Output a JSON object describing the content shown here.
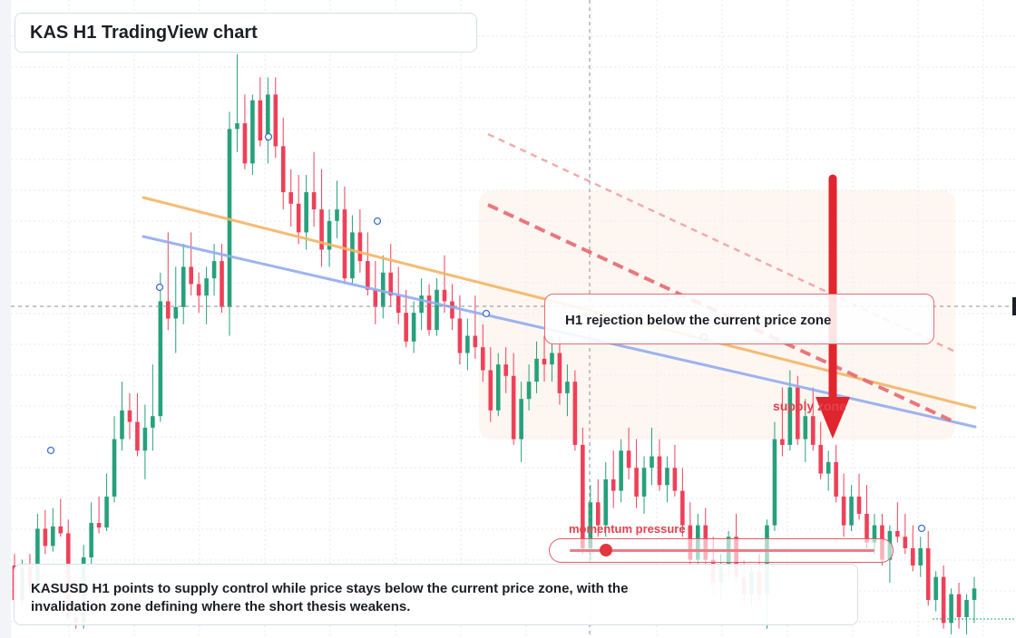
{
  "title": "KAS H1 TradingView chart",
  "rejection_note": "H1 rejection below the current price zone",
  "zone_label": "supply zone",
  "momentum": {
    "label": "momentum pressure",
    "level": 0.12
  },
  "summary": "KASUSD H1 points to supply control while price stays below the current price zone, with the invalidation zone defining where the short thesis weakens.",
  "colors": {
    "bull": "#26a17b",
    "bear": "#ef4058",
    "orange_trend": "#f5b565",
    "blue_trend": "#93acef",
    "red_channel": "#e76a71",
    "arrow": "#e0252e",
    "grid": "#e5e9ef",
    "crosshair": "#8a8f98"
  },
  "chart_data": {
    "type": "candlestick",
    "symbol": "KASUSD",
    "timeframe": "H1",
    "axis_labels": "none",
    "grid": true,
    "candles": [
      {
        "o": 0.6,
        "h": 0.7,
        "l": 0.25,
        "c": 0.3
      },
      {
        "o": 0.3,
        "h": 0.65,
        "l": 0.25,
        "c": 0.59
      },
      {
        "o": 0.59,
        "h": 0.7,
        "l": 0.35,
        "c": 0.42
      },
      {
        "o": 0.42,
        "h": 1.05,
        "l": 0.38,
        "c": 0.92
      },
      {
        "o": 0.92,
        "h": 1.08,
        "l": 0.7,
        "c": 0.77
      },
      {
        "o": 0.77,
        "h": 1.1,
        "l": 0.72,
        "c": 0.94
      },
      {
        "o": 0.94,
        "h": 1.18,
        "l": 0.85,
        "c": 0.88
      },
      {
        "o": 0.88,
        "h": 1.0,
        "l": 0.12,
        "c": 0.15
      },
      {
        "o": 0.15,
        "h": 0.3,
        "l": 0.05,
        "c": 0.1
      },
      {
        "o": 0.1,
        "h": 0.78,
        "l": 0.05,
        "c": 0.67
      },
      {
        "o": 0.67,
        "h": 1.15,
        "l": 0.6,
        "c": 0.97
      },
      {
        "o": 0.97,
        "h": 1.2,
        "l": 0.88,
        "c": 0.93
      },
      {
        "o": 0.93,
        "h": 1.4,
        "l": 0.9,
        "c": 1.2
      },
      {
        "o": 1.2,
        "h": 1.9,
        "l": 1.15,
        "c": 1.7
      },
      {
        "o": 1.7,
        "h": 2.2,
        "l": 1.6,
        "c": 1.95
      },
      {
        "o": 1.95,
        "h": 2.1,
        "l": 1.7,
        "c": 1.85
      },
      {
        "o": 1.85,
        "h": 2.1,
        "l": 1.55,
        "c": 1.6
      },
      {
        "o": 1.6,
        "h": 2.0,
        "l": 1.35,
        "c": 1.8
      },
      {
        "o": 1.8,
        "h": 2.35,
        "l": 1.6,
        "c": 1.9
      },
      {
        "o": 1.9,
        "h": 3.15,
        "l": 1.85,
        "c": 2.9
      },
      {
        "o": 2.9,
        "h": 3.5,
        "l": 2.65,
        "c": 2.75
      },
      {
        "o": 2.75,
        "h": 3.2,
        "l": 2.45,
        "c": 2.85
      },
      {
        "o": 2.85,
        "h": 3.4,
        "l": 2.7,
        "c": 3.2
      },
      {
        "o": 3.2,
        "h": 3.5,
        "l": 2.95,
        "c": 3.05
      },
      {
        "o": 3.05,
        "h": 3.15,
        "l": 2.8,
        "c": 2.95
      },
      {
        "o": 2.95,
        "h": 3.2,
        "l": 2.7,
        "c": 3.1
      },
      {
        "o": 3.1,
        "h": 3.4,
        "l": 2.95,
        "c": 3.25
      },
      {
        "o": 3.25,
        "h": 3.4,
        "l": 2.8,
        "c": 2.85
      },
      {
        "o": 2.85,
        "h": 4.55,
        "l": 2.6,
        "c": 4.4
      },
      {
        "o": 4.4,
        "h": 5.05,
        "l": 4.2,
        "c": 4.45
      },
      {
        "o": 4.45,
        "h": 4.7,
        "l": 4.05,
        "c": 4.1
      },
      {
        "o": 4.1,
        "h": 4.7,
        "l": 4.0,
        "c": 4.65
      },
      {
        "o": 4.65,
        "h": 4.85,
        "l": 4.25,
        "c": 4.3
      },
      {
        "o": 4.3,
        "h": 4.85,
        "l": 4.1,
        "c": 4.7
      },
      {
        "o": 4.7,
        "h": 4.85,
        "l": 4.15,
        "c": 4.25
      },
      {
        "o": 4.25,
        "h": 4.5,
        "l": 3.7,
        "c": 3.85
      },
      {
        "o": 3.85,
        "h": 4.05,
        "l": 3.55,
        "c": 3.75
      },
      {
        "o": 3.75,
        "h": 4.0,
        "l": 3.4,
        "c": 3.5
      },
      {
        "o": 3.5,
        "h": 4.0,
        "l": 3.35,
        "c": 3.85
      },
      {
        "o": 3.85,
        "h": 4.2,
        "l": 3.55,
        "c": 3.7
      },
      {
        "o": 3.7,
        "h": 4.05,
        "l": 3.2,
        "c": 3.35
      },
      {
        "o": 3.35,
        "h": 3.7,
        "l": 3.2,
        "c": 3.6
      },
      {
        "o": 3.6,
        "h": 3.95,
        "l": 3.45,
        "c": 3.7
      },
      {
        "o": 3.7,
        "h": 3.9,
        "l": 3.05,
        "c": 3.1
      },
      {
        "o": 3.1,
        "h": 3.65,
        "l": 3.05,
        "c": 3.5
      },
      {
        "o": 3.5,
        "h": 3.7,
        "l": 3.15,
        "c": 3.25
      },
      {
        "o": 3.25,
        "h": 3.5,
        "l": 2.95,
        "c": 3.0
      },
      {
        "o": 3.0,
        "h": 3.25,
        "l": 2.7,
        "c": 2.85
      },
      {
        "o": 2.85,
        "h": 3.3,
        "l": 2.75,
        "c": 3.15
      },
      {
        "o": 3.15,
        "h": 3.4,
        "l": 2.85,
        "c": 2.95
      },
      {
        "o": 2.95,
        "h": 3.2,
        "l": 2.7,
        "c": 2.8
      },
      {
        "o": 2.8,
        "h": 3.0,
        "l": 2.5,
        "c": 2.55
      },
      {
        "o": 2.55,
        "h": 2.9,
        "l": 2.45,
        "c": 2.8
      },
      {
        "o": 2.8,
        "h": 3.1,
        "l": 2.65,
        "c": 2.95
      },
      {
        "o": 2.95,
        "h": 3.05,
        "l": 2.6,
        "c": 2.65
      },
      {
        "o": 2.65,
        "h": 3.1,
        "l": 2.6,
        "c": 3.0
      },
      {
        "o": 3.0,
        "h": 3.3,
        "l": 2.8,
        "c": 2.9
      },
      {
        "o": 2.9,
        "h": 3.05,
        "l": 2.65,
        "c": 2.75
      },
      {
        "o": 2.75,
        "h": 2.95,
        "l": 2.35,
        "c": 2.45
      },
      {
        "o": 2.45,
        "h": 2.75,
        "l": 2.3,
        "c": 2.6
      },
      {
        "o": 2.6,
        "h": 2.95,
        "l": 2.4,
        "c": 2.5
      },
      {
        "o": 2.5,
        "h": 2.7,
        "l": 2.2,
        "c": 2.3
      },
      {
        "o": 2.3,
        "h": 2.5,
        "l": 1.85,
        "c": 1.95
      },
      {
        "o": 1.95,
        "h": 2.45,
        "l": 1.9,
        "c": 2.35
      },
      {
        "o": 2.35,
        "h": 2.5,
        "l": 2.1,
        "c": 2.25
      },
      {
        "o": 2.25,
        "h": 2.45,
        "l": 1.65,
        "c": 1.7
      },
      {
        "o": 1.7,
        "h": 2.2,
        "l": 1.5,
        "c": 2.05
      },
      {
        "o": 2.05,
        "h": 2.35,
        "l": 1.95,
        "c": 2.2
      },
      {
        "o": 2.2,
        "h": 2.55,
        "l": 2.1,
        "c": 2.4
      },
      {
        "o": 2.4,
        "h": 2.6,
        "l": 2.2,
        "c": 2.35
      },
      {
        "o": 2.35,
        "h": 2.6,
        "l": 2.2,
        "c": 2.45
      },
      {
        "o": 2.45,
        "h": 2.6,
        "l": 2.0,
        "c": 2.1
      },
      {
        "o": 2.1,
        "h": 2.35,
        "l": 1.9,
        "c": 2.2
      },
      {
        "o": 2.2,
        "h": 2.3,
        "l": 1.6,
        "c": 1.65
      },
      {
        "o": 1.65,
        "h": 1.8,
        "l": 0.7,
        "c": 0.75
      },
      {
        "o": 0.75,
        "h": 1.3,
        "l": 0.65,
        "c": 1.15
      },
      {
        "o": 1.15,
        "h": 1.35,
        "l": 0.85,
        "c": 0.95
      },
      {
        "o": 0.95,
        "h": 1.5,
        "l": 0.85,
        "c": 1.35
      },
      {
        "o": 1.35,
        "h": 1.6,
        "l": 1.1,
        "c": 1.25
      },
      {
        "o": 1.25,
        "h": 1.7,
        "l": 1.15,
        "c": 1.6
      },
      {
        "o": 1.6,
        "h": 1.8,
        "l": 1.35,
        "c": 1.45
      },
      {
        "o": 1.45,
        "h": 1.7,
        "l": 1.1,
        "c": 1.2
      },
      {
        "o": 1.2,
        "h": 1.55,
        "l": 1.05,
        "c": 1.45
      },
      {
        "o": 1.45,
        "h": 1.8,
        "l": 1.3,
        "c": 1.55
      },
      {
        "o": 1.55,
        "h": 1.7,
        "l": 1.25,
        "c": 1.3
      },
      {
        "o": 1.3,
        "h": 1.55,
        "l": 1.15,
        "c": 1.45
      },
      {
        "o": 1.45,
        "h": 1.65,
        "l": 1.2,
        "c": 1.25
      },
      {
        "o": 1.25,
        "h": 1.45,
        "l": 0.85,
        "c": 0.95
      },
      {
        "o": 0.95,
        "h": 1.15,
        "l": 0.6,
        "c": 0.65
      },
      {
        "o": 0.65,
        "h": 1.05,
        "l": 0.6,
        "c": 0.95
      },
      {
        "o": 0.95,
        "h": 1.1,
        "l": 0.6,
        "c": 0.65
      },
      {
        "o": 0.65,
        "h": 0.85,
        "l": 0.35,
        "c": 0.45
      },
      {
        "o": 0.45,
        "h": 0.7,
        "l": 0.3,
        "c": 0.6
      },
      {
        "o": 0.6,
        "h": 0.9,
        "l": 0.5,
        "c": 0.85
      },
      {
        "o": 0.85,
        "h": 1.05,
        "l": 0.45,
        "c": 0.5
      },
      {
        "o": 0.5,
        "h": 0.65,
        "l": 0.3,
        "c": 0.35
      },
      {
        "o": 0.35,
        "h": 0.6,
        "l": 0.25,
        "c": 0.55
      },
      {
        "o": 0.55,
        "h": 0.7,
        "l": 0.3,
        "c": 0.35
      },
      {
        "o": 0.35,
        "h": 1.0,
        "l": 0.05,
        "c": 0.95
      },
      {
        "o": 0.95,
        "h": 1.85,
        "l": 0.9,
        "c": 1.7
      },
      {
        "o": 1.7,
        "h": 2.15,
        "l": 1.55,
        "c": 1.65
      },
      {
        "o": 1.65,
        "h": 2.3,
        "l": 1.6,
        "c": 2.15
      },
      {
        "o": 2.15,
        "h": 2.25,
        "l": 1.65,
        "c": 1.7
      },
      {
        "o": 1.7,
        "h": 2.05,
        "l": 1.5,
        "c": 1.9
      },
      {
        "o": 1.9,
        "h": 2.15,
        "l": 1.6,
        "c": 1.65
      },
      {
        "o": 1.65,
        "h": 1.85,
        "l": 1.35,
        "c": 1.4
      },
      {
        "o": 1.4,
        "h": 1.6,
        "l": 1.25,
        "c": 1.5
      },
      {
        "o": 1.5,
        "h": 1.65,
        "l": 1.15,
        "c": 1.2
      },
      {
        "o": 1.2,
        "h": 1.4,
        "l": 0.85,
        "c": 0.95
      },
      {
        "o": 0.95,
        "h": 1.3,
        "l": 0.9,
        "c": 1.2
      },
      {
        "o": 1.2,
        "h": 1.4,
        "l": 1.0,
        "c": 1.05
      },
      {
        "o": 1.05,
        "h": 1.3,
        "l": 0.75,
        "c": 0.8
      },
      {
        "o": 0.8,
        "h": 1.05,
        "l": 0.7,
        "c": 0.95
      },
      {
        "o": 0.95,
        "h": 1.05,
        "l": 0.6,
        "c": 0.65
      },
      {
        "o": 0.65,
        "h": 0.95,
        "l": 0.45,
        "c": 0.9
      },
      {
        "o": 0.9,
        "h": 1.15,
        "l": 0.8,
        "c": 0.85
      },
      {
        "o": 0.85,
        "h": 1.05,
        "l": 0.7,
        "c": 0.75
      },
      {
        "o": 0.75,
        "h": 0.95,
        "l": 0.55,
        "c": 0.6
      },
      {
        "o": 0.6,
        "h": 0.85,
        "l": 0.5,
        "c": 0.75
      },
      {
        "o": 0.75,
        "h": 0.9,
        "l": 0.25,
        "c": 0.3
      },
      {
        "o": 0.3,
        "h": 0.55,
        "l": 0.2,
        "c": 0.5
      },
      {
        "o": 0.5,
        "h": 0.6,
        "l": 0.05,
        "c": 0.1
      },
      {
        "o": 0.1,
        "h": 0.4,
        "l": 0.0,
        "c": 0.35
      },
      {
        "o": 0.35,
        "h": 0.45,
        "l": 0.05,
        "c": 0.15
      },
      {
        "o": 0.15,
        "h": 0.35,
        "l": 0.0,
        "c": 0.3
      },
      {
        "o": 0.3,
        "h": 0.5,
        "l": 0.1,
        "c": 0.4
      }
    ]
  }
}
